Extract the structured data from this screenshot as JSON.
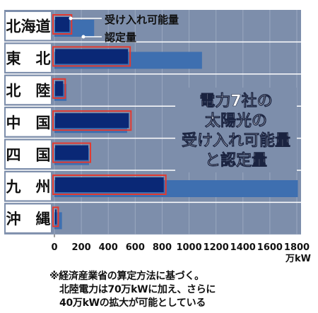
{
  "chart_data": {
    "type": "bar",
    "title_lines": [
      "電力7社の",
      "太陽光の",
      "受け入れ可能量",
      "と認定量"
    ],
    "categories": [
      "北海道",
      "東　北",
      "北　陸",
      "中　国",
      "四　国",
      "九　州",
      "沖　縄"
    ],
    "series": [
      {
        "name": "受け入れ可能量",
        "values": [
          117,
          552,
          70,
          558,
          257,
          817,
          18
        ]
      },
      {
        "name": "認定量",
        "values": [
          295,
          1096,
          90,
          540,
          257,
          1808,
          56
        ]
      }
    ],
    "xlim": [
      0,
      1800
    ],
    "xticks": [
      "0",
      "200",
      "400",
      "600",
      "800",
      "1000",
      "1200",
      "1400",
      "1600",
      "1800"
    ],
    "xunit": "万kW",
    "legend_labels": [
      "受け入れ可能量",
      "認定量"
    ],
    "legend_placement": "top-left",
    "grid": true
  },
  "colors": {
    "panel": "#7d8eab",
    "header_band": "#5d6e8e",
    "accepted": "#0a2876",
    "certified": "#3e6fb0",
    "outline": "#e23a30",
    "label_bg": "#ffffff",
    "grid": "#9aa8c0",
    "title_box": "#ffffff"
  },
  "footnote": {
    "line1": "※経済産業省の算定方法に基づく。",
    "line2": "北陸電力は70万kWに加え、さらに",
    "line3": "40万kWの拡大が可能としている"
  }
}
